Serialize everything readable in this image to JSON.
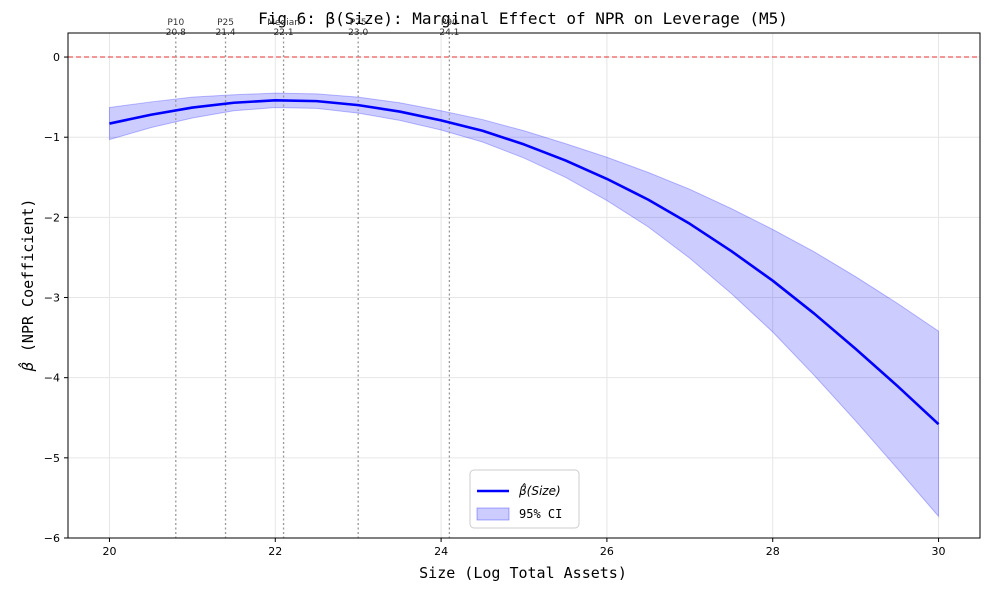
{
  "chart_data": {
    "type": "line",
    "title": "Fig 6: β(Size): Marginal Effect of NPR on Leverage (M5)",
    "xlabel": "Size (Log Total Assets)",
    "ylabel": "(NPR Coefficient)",
    "ylabel_symbol": "β̂",
    "xlim": [
      19.5,
      30.5
    ],
    "ylim": [
      -6,
      0.3
    ],
    "xticks": [
      20,
      22,
      24,
      26,
      28,
      30
    ],
    "xtick_labels": [
      "20",
      "22",
      "24",
      "26",
      "28",
      "30"
    ],
    "yticks": [
      0,
      -1,
      -2,
      -3,
      -4,
      -5,
      -6
    ],
    "ytick_labels": [
      "0",
      "−1",
      "−2",
      "−3",
      "−4",
      "−5",
      "−6"
    ],
    "grid": true,
    "series": [
      {
        "name": "β̂(Size)",
        "color": "#0000ff",
        "x": [
          20,
          20.5,
          21,
          21.5,
          22,
          22.5,
          23,
          23.5,
          24,
          24.5,
          25,
          25.5,
          26,
          26.5,
          27,
          27.5,
          28,
          28.5,
          29,
          29.5,
          30
        ],
        "y": [
          -0.83,
          -0.72,
          -0.63,
          -0.57,
          -0.54,
          -0.55,
          -0.6,
          -0.68,
          -0.79,
          -0.92,
          -1.09,
          -1.29,
          -1.52,
          -1.78,
          -2.08,
          -2.42,
          -2.79,
          -3.2,
          -3.64,
          -4.1,
          -4.58
        ]
      }
    ],
    "ci": {
      "name": "95% CI",
      "color": "#0000ff",
      "x": [
        20,
        20.5,
        21,
        21.5,
        22,
        22.5,
        23,
        23.5,
        24,
        24.5,
        25,
        25.5,
        26,
        26.5,
        27,
        27.5,
        28,
        28.5,
        29,
        29.5,
        30
      ],
      "upper": [
        -0.63,
        -0.56,
        -0.5,
        -0.47,
        -0.45,
        -0.46,
        -0.5,
        -0.57,
        -0.67,
        -0.78,
        -0.92,
        -1.08,
        -1.25,
        -1.44,
        -1.65,
        -1.89,
        -2.15,
        -2.43,
        -2.74,
        -3.07,
        -3.42
      ],
      "lower": [
        -1.03,
        -0.88,
        -0.76,
        -0.67,
        -0.63,
        -0.64,
        -0.7,
        -0.79,
        -0.91,
        -1.06,
        -1.26,
        -1.5,
        -1.79,
        -2.12,
        -2.51,
        -2.95,
        -3.43,
        -3.97,
        -4.54,
        -5.13,
        -5.73
      ]
    },
    "reference_line": {
      "y": 0,
      "color": "#e03030",
      "style": "dashed"
    },
    "percentiles": [
      {
        "label": "P10",
        "value": 20.8,
        "value_label": "20.8"
      },
      {
        "label": "P25",
        "value": 21.4,
        "value_label": "21.4"
      },
      {
        "label": "Median",
        "value": 22.1,
        "value_label": "22.1"
      },
      {
        "label": "P75",
        "value": 23.0,
        "value_label": "23.0"
      },
      {
        "label": "P90",
        "value": 24.1,
        "value_label": "24.1"
      }
    ],
    "legend": {
      "position": "bottom-center",
      "entries": [
        {
          "label": "β̂(Size)",
          "kind": "line"
        },
        {
          "label": "95% CI",
          "kind": "patch"
        }
      ]
    }
  }
}
